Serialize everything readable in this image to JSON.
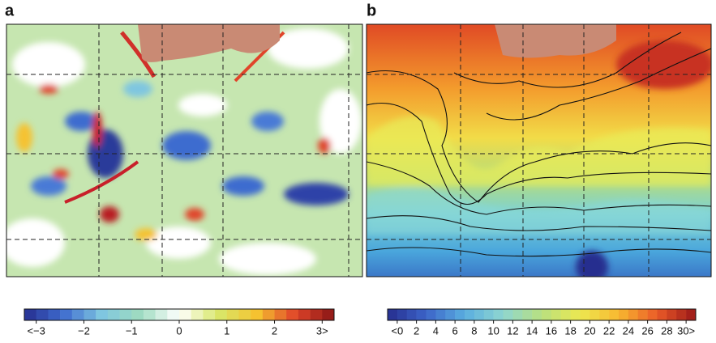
{
  "panels": [
    {
      "label": "a",
      "colorbar": {
        "lim": [
          -3.25,
          3.25
        ],
        "ticks": [
          {
            "value": -3,
            "label": "<−3"
          },
          {
            "value": -2,
            "label": "−2"
          },
          {
            "value": -1,
            "label": "−1"
          },
          0,
          1,
          2,
          {
            "value": 3,
            "label": "3>"
          }
        ],
        "colors": [
          "#262e8f",
          "#3f6ccf",
          "#7fc6e0",
          "#9fdcc0",
          "#ffffff",
          "#d8e86a",
          "#f5c230",
          "#e0452a",
          "#8a1616"
        ]
      }
    },
    {
      "label": "b",
      "colorbar": {
        "lim": [
          -1,
          31
        ],
        "ticks": [
          {
            "value": 0,
            "label": "<0"
          },
          2,
          4,
          6,
          8,
          10,
          12,
          14,
          16,
          18,
          20,
          22,
          24,
          26,
          28,
          {
            "value": 30,
            "label": "30>"
          }
        ],
        "colors": [
          "#262e8f",
          "#3c64c8",
          "#5aaee0",
          "#8fd6d0",
          "#b8e080",
          "#ece850",
          "#f8b830",
          "#ea5a28",
          "#9a1818"
        ]
      }
    }
  ]
}
